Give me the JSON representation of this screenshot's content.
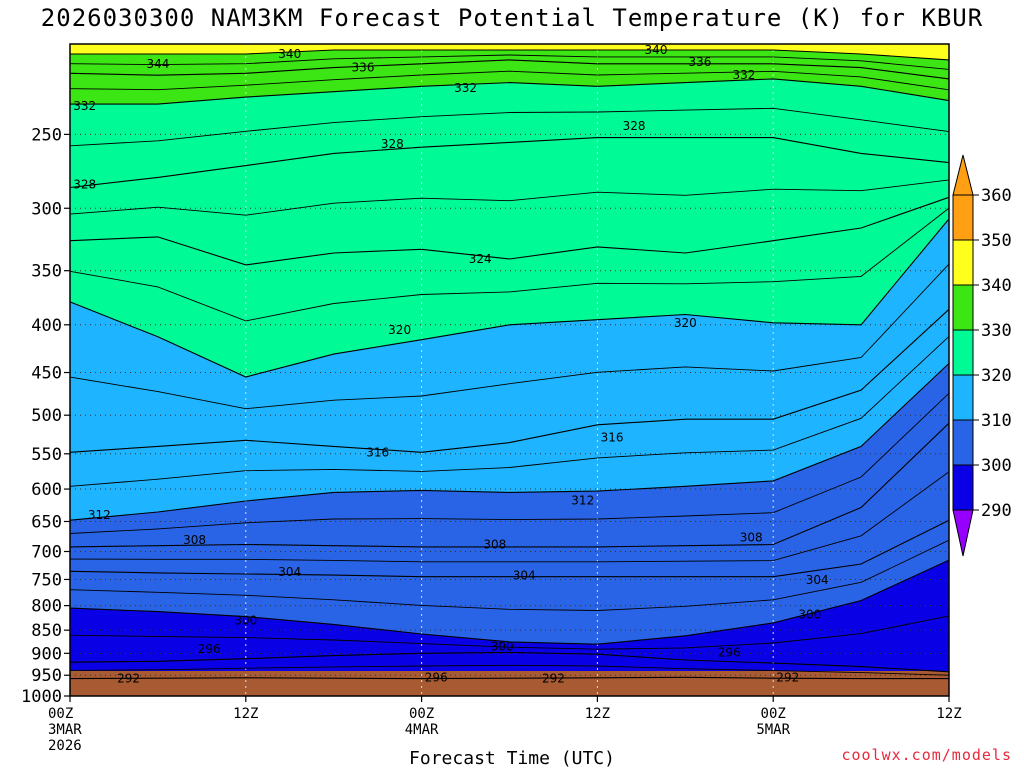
{
  "colors": {
    "background": "#ffffff",
    "ground": "#a85a32",
    "credit": "#e8283c"
  },
  "chart_data": {
    "type": "contour",
    "title": "2026030300 NAM3KM Forecast Potential Temperature (K) for KBUR",
    "xlabel": "Forecast Time (UTC)",
    "ylabel": "",
    "credit": "coolwx.com/models",
    "y_axis": {
      "ticks": [
        250,
        300,
        350,
        400,
        450,
        500,
        550,
        600,
        650,
        700,
        750,
        800,
        850,
        900,
        950,
        1000
      ],
      "range": [
        1000,
        200
      ]
    },
    "x_axis": {
      "range_hours": [
        0,
        60
      ],
      "ticks": [
        {
          "hour": 0,
          "l1": "00Z",
          "l2": "3MAR",
          "l3": "2026"
        },
        {
          "hour": 12,
          "l1": "12Z",
          "l2": "",
          "l3": ""
        },
        {
          "hour": 24,
          "l1": "00Z",
          "l2": "4MAR",
          "l3": ""
        },
        {
          "hour": 36,
          "l1": "12Z",
          "l2": "",
          "l3": ""
        },
        {
          "hour": 48,
          "l1": "00Z",
          "l2": "5MAR",
          "l3": ""
        },
        {
          "hour": 60,
          "l1": "12Z",
          "l2": "",
          "l3": ""
        }
      ]
    },
    "colorbar": {
      "levels": [
        290,
        300,
        310,
        320,
        330,
        340,
        350,
        360
      ],
      "colors": [
        "#9600ff",
        "#0a00e6",
        "#2a64e6",
        "#1eb4ff",
        "#00fa96",
        "#3ce614",
        "#ffff1e",
        "#ffa014"
      ]
    },
    "isentropes": [
      {
        "theta": 292,
        "p": [
          958,
          957,
          956,
          957,
          958,
          957,
          956,
          955,
          957,
          958,
          958
        ]
      },
      {
        "theta": 296,
        "p": [
          920,
          918,
          912,
          905,
          900,
          898,
          902,
          915,
          922,
          930,
          942
        ]
      },
      {
        "theta": 300,
        "p": [
          805,
          812,
          822,
          838,
          858,
          875,
          880,
          862,
          835,
          790,
          715
        ]
      },
      {
        "theta": 304,
        "p": [
          735,
          738,
          740,
          742,
          745,
          745,
          745,
          745,
          745,
          722,
          648
        ]
      },
      {
        "theta": 308,
        "p": [
          692,
          690,
          688,
          690,
          692,
          692,
          692,
          690,
          688,
          628,
          510
        ]
      },
      {
        "theta": 312,
        "p": [
          648,
          635,
          618,
          605,
          602,
          605,
          603,
          596,
          588,
          540,
          440
        ]
      },
      {
        "theta": 316,
        "p": [
          548,
          540,
          532,
          540,
          548,
          535,
          512,
          505,
          505,
          470,
          385
        ]
      },
      {
        "theta": 320,
        "p": [
          378,
          412,
          455,
          430,
          415,
          400,
          395,
          390,
          398,
          400,
          308
        ]
      },
      {
        "theta": 324,
        "p": [
          325,
          322,
          345,
          335,
          332,
          340,
          330,
          335,
          325,
          315,
          292
        ]
      },
      {
        "theta": 328,
        "p": [
          285,
          278,
          270,
          262,
          258,
          255,
          252,
          252,
          252,
          262,
          268
        ]
      },
      {
        "theta": 332,
        "p": [
          232,
          232,
          228,
          225,
          222,
          220,
          222,
          220,
          218,
          222,
          230
        ]
      },
      {
        "theta": 336,
        "p": [
          215,
          216,
          215,
          212,
          210,
          208,
          210,
          210,
          210,
          212,
          218
        ]
      },
      {
        "theta": 340,
        "p": [
          205,
          205,
          205,
          203,
          203,
          203,
          203,
          203,
          203,
          205,
          208
        ]
      }
    ],
    "contour_labels": [
      {
        "text": "344",
        "hour": 6.0,
        "p": 210
      },
      {
        "text": "340",
        "hour": 15.0,
        "p": 205
      },
      {
        "text": "336",
        "hour": 20.0,
        "p": 212
      },
      {
        "text": "340",
        "hour": 40.0,
        "p": 203
      },
      {
        "text": "336",
        "hour": 43.0,
        "p": 209
      },
      {
        "text": "332",
        "hour": 46.0,
        "p": 216
      },
      {
        "text": "332",
        "hour": 1.0,
        "p": 233
      },
      {
        "text": "332",
        "hour": 27.0,
        "p": 223
      },
      {
        "text": "328",
        "hour": 22.0,
        "p": 256
      },
      {
        "text": "328",
        "hour": 38.5,
        "p": 245
      },
      {
        "text": "328",
        "hour": 1.0,
        "p": 283
      },
      {
        "text": "324",
        "hour": 28.0,
        "p": 340
      },
      {
        "text": "320",
        "hour": 22.5,
        "p": 405
      },
      {
        "text": "320",
        "hour": 42.0,
        "p": 398
      },
      {
        "text": "316",
        "hour": 21.0,
        "p": 548
      },
      {
        "text": "316",
        "hour": 37.0,
        "p": 528
      },
      {
        "text": "312",
        "hour": 2.0,
        "p": 640
      },
      {
        "text": "312",
        "hour": 35.0,
        "p": 617
      },
      {
        "text": "308",
        "hour": 8.5,
        "p": 680
      },
      {
        "text": "308",
        "hour": 29.0,
        "p": 688
      },
      {
        "text": "308",
        "hour": 46.5,
        "p": 676
      },
      {
        "text": "304",
        "hour": 15.0,
        "p": 736
      },
      {
        "text": "304",
        "hour": 31.0,
        "p": 743
      },
      {
        "text": "304",
        "hour": 51.0,
        "p": 751
      },
      {
        "text": "300",
        "hour": 12.0,
        "p": 830
      },
      {
        "text": "300",
        "hour": 29.5,
        "p": 885
      },
      {
        "text": "300",
        "hour": 50.5,
        "p": 818
      },
      {
        "text": "296",
        "hour": 9.5,
        "p": 890
      },
      {
        "text": "296",
        "hour": 25.0,
        "p": 955
      },
      {
        "text": "296",
        "hour": 45.0,
        "p": 898
      },
      {
        "text": "292",
        "hour": 4.0,
        "p": 958
      },
      {
        "text": "292",
        "hour": 33.0,
        "p": 958
      },
      {
        "text": "292",
        "hour": 49.0,
        "p": 955
      }
    ]
  }
}
